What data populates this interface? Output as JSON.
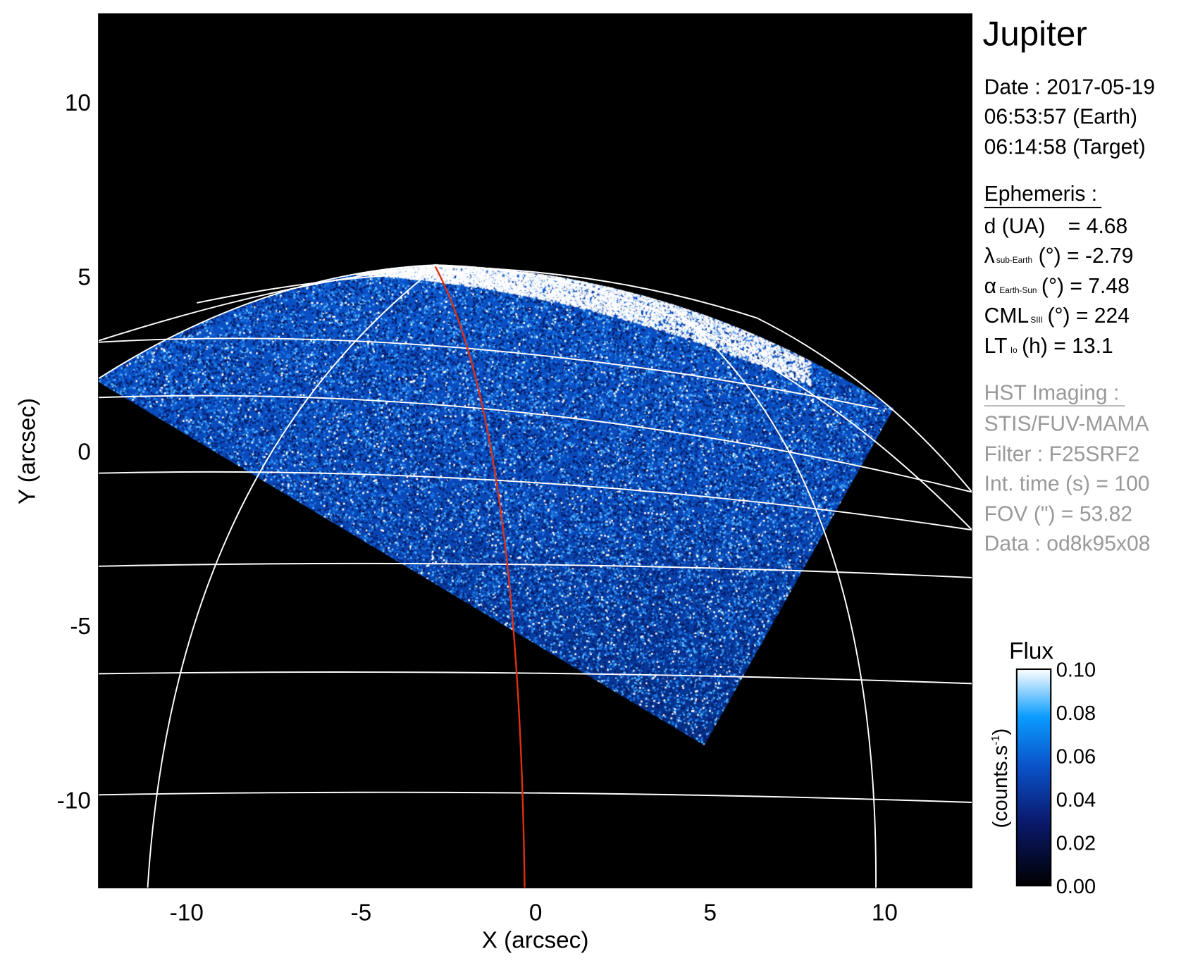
{
  "chart_data": {
    "type": "heatmap",
    "title": "Jupiter",
    "xlabel": "X (arcsec)",
    "ylabel": "Y (arcsec)",
    "xlim": [
      -12.5,
      12.5
    ],
    "ylim": [
      -12.5,
      12.5
    ],
    "x_ticks": [
      "-10",
      "-5",
      "0",
      "5",
      "10"
    ],
    "y_ticks": [
      "10",
      "5",
      "0",
      "-5",
      "-10"
    ],
    "x_tick_values": [
      -10,
      -5,
      0,
      5,
      10
    ],
    "y_tick_values": [
      10,
      5,
      0,
      -5,
      -10
    ],
    "grid": "planetographic latitude/longitude grid (white)",
    "highlight_meridian_color": "#e03010",
    "colorbar": {
      "title": "Flux",
      "label": "(counts.s",
      "label_sup": "-1",
      "label_end": ")",
      "range": [
        0.0,
        0.1
      ],
      "ticks": [
        "0.10",
        "0.08",
        "0.06",
        "0.04",
        "0.02",
        "0.00"
      ],
      "colors": [
        "#000000",
        "#0a1a6e",
        "#0a52c8",
        "#0a9cff",
        "#ffffff"
      ]
    }
  },
  "info": {
    "target": "Jupiter",
    "date": "Date : 2017-05-19",
    "time_earth": "06:53:57 (Earth)",
    "time_target": "06:14:58 (Target)",
    "ephemeris_title": "Ephemeris :",
    "d_label": "d (UA)",
    "d_value": "= 4.68",
    "lambda_sym": "λ",
    "lambda_sub": "sub-Earth",
    "lambda_value": "(°) = -2.79",
    "alpha_sym": "α",
    "alpha_sub": "Earth-Sun",
    "alpha_value": "(°) = 7.48",
    "cml_sym": "CML",
    "cml_sub": "SIII",
    "cml_value": "(°) = 224",
    "lt_sym": "LT",
    "lt_sub": "Io",
    "lt_value": "(h) = 13.1",
    "hst_title": "HST Imaging :",
    "instrument": "STIS/FUV-MAMA",
    "filter": "Filter : F25SRF2",
    "int_time": "Int. time (s) = 100",
    "fov": "FOV (\") = 53.82",
    "data": "Data : od8k95x08"
  }
}
